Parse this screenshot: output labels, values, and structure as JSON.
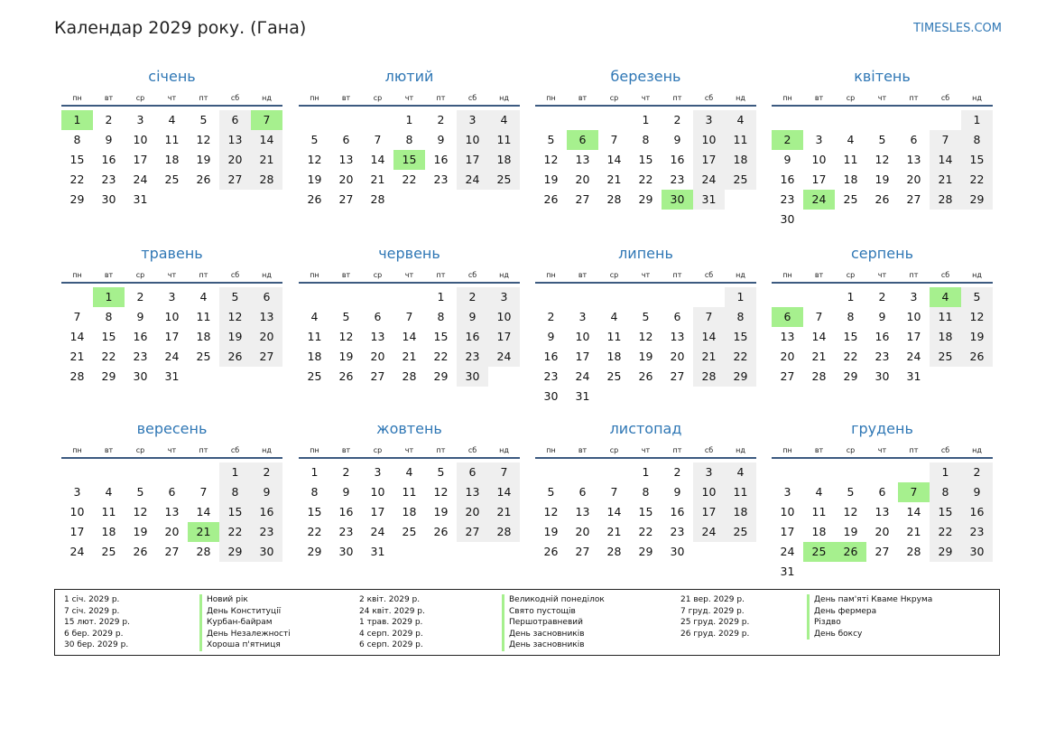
{
  "header": {
    "title": "Календар 2029 року. (Гана)",
    "site": "TIMESLES.COM"
  },
  "weekdays": [
    "пн",
    "вт",
    "ср",
    "чт",
    "пт",
    "сб",
    "нд"
  ],
  "months": [
    {
      "name": "січень",
      "first_weekday": 0,
      "days": 31,
      "holidays": [
        1,
        7
      ]
    },
    {
      "name": "лютий",
      "first_weekday": 3,
      "days": 28,
      "holidays": [
        15
      ]
    },
    {
      "name": "березень",
      "first_weekday": 3,
      "days": 31,
      "holidays": [
        6,
        30
      ]
    },
    {
      "name": "квітень",
      "first_weekday": 6,
      "days": 30,
      "holidays": [
        2,
        24
      ]
    },
    {
      "name": "травень",
      "first_weekday": 1,
      "days": 31,
      "holidays": [
        1
      ]
    },
    {
      "name": "червень",
      "first_weekday": 4,
      "days": 30,
      "holidays": []
    },
    {
      "name": "липень",
      "first_weekday": 6,
      "days": 31,
      "holidays": []
    },
    {
      "name": "серпень",
      "first_weekday": 2,
      "days": 31,
      "holidays": [
        4,
        6
      ]
    },
    {
      "name": "вересень",
      "first_weekday": 5,
      "days": 30,
      "holidays": [
        21
      ]
    },
    {
      "name": "жовтень",
      "first_weekday": 0,
      "days": 31,
      "holidays": []
    },
    {
      "name": "листопад",
      "first_weekday": 3,
      "days": 30,
      "holidays": []
    },
    {
      "name": "грудень",
      "first_weekday": 5,
      "days": 31,
      "holidays": [
        7,
        25,
        26
      ]
    }
  ],
  "holiday_list": [
    {
      "date": "1 січ. 2029 р.",
      "name": "Новий рік"
    },
    {
      "date": "7 січ. 2029 р.",
      "name": "День Конституції"
    },
    {
      "date": "15 лют. 2029 р.",
      "name": "Курбан-байрам"
    },
    {
      "date": "6 бер. 2029 р.",
      "name": "День Незалежності"
    },
    {
      "date": "30 бер. 2029 р.",
      "name": "Хороша п'ятниця"
    },
    {
      "date": "2 квіт. 2029 р.",
      "name": "Великодній понеділок"
    },
    {
      "date": "24 квіт. 2029 р.",
      "name": "Свято пустощів"
    },
    {
      "date": "1 трав. 2029 р.",
      "name": "Першотравневий"
    },
    {
      "date": "4 серп. 2029 р.",
      "name": "День засновників"
    },
    {
      "date": "6 серп. 2029 р.",
      "name": "День засновників"
    },
    {
      "date": "21 вер. 2029 р.",
      "name": "День пам'яті Кваме Нкрума"
    },
    {
      "date": "7 груд. 2029 р.",
      "name": "День фермера"
    },
    {
      "date": "25 груд. 2029 р.",
      "name": "Різдво"
    },
    {
      "date": "26 груд. 2029 р.",
      "name": "День боксу"
    }
  ],
  "colors": {
    "accent": "#2f77b5",
    "holiday": "#a6f08e",
    "weekend": "#efefef",
    "rule": "#3c5a80"
  }
}
